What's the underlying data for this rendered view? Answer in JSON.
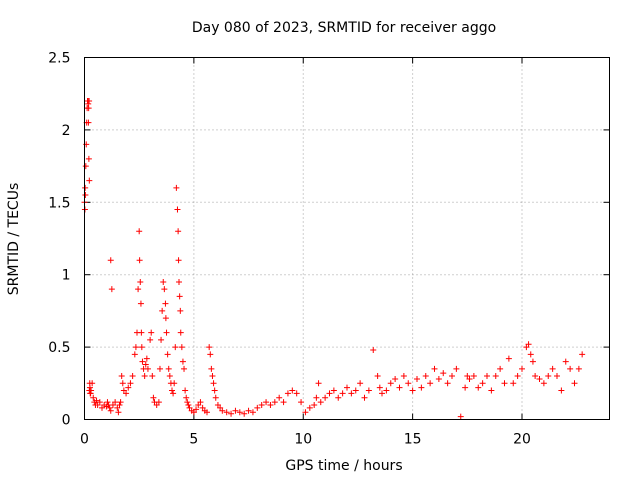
{
  "chart_data": {
    "type": "scatter",
    "title": "Day 080 of 2023, SRMTID for receiver aggo",
    "xlabel": "GPS time / hours",
    "ylabel": "SRMTID / TECUs",
    "xlim": [
      0,
      24
    ],
    "ylim": [
      0,
      2.5
    ],
    "xticks": [
      0,
      5,
      10,
      15,
      20
    ],
    "xtick_labels": [
      "0",
      "5",
      "10",
      "15",
      "20"
    ],
    "yticks": [
      0,
      0.5,
      1,
      1.5,
      2,
      2.5
    ],
    "ytick_labels": [
      "0",
      "0.5",
      "1",
      "1.5",
      "2",
      "2.5"
    ],
    "grid": true,
    "marker": "plus",
    "color": "#ff0000",
    "series": [
      {
        "name": "SRMTID",
        "x": [
          0.0,
          0.03,
          0.06,
          0.08,
          0.1,
          0.12,
          0.14,
          0.16,
          0.18,
          0.2,
          0.22,
          0.25,
          0.28,
          0.3,
          0.35,
          0.4,
          0.45,
          0.5,
          0.55,
          0.6,
          0.7,
          0.8,
          0.9,
          1.0,
          1.05,
          1.1,
          1.15,
          1.2,
          1.3,
          1.4,
          1.5,
          1.55,
          1.6,
          1.65,
          1.7,
          1.75,
          1.8,
          1.9,
          2.0,
          2.1,
          2.2,
          2.3,
          2.35,
          2.4,
          2.45,
          2.5,
          2.52,
          2.55,
          2.58,
          2.6,
          2.62,
          2.65,
          2.7,
          2.75,
          2.8,
          2.85,
          2.9,
          3.0,
          3.05,
          3.1,
          3.15,
          3.2,
          3.3,
          3.4,
          3.45,
          3.5,
          3.55,
          3.6,
          3.65,
          3.7,
          3.72,
          3.75,
          3.8,
          3.85,
          3.9,
          3.95,
          4.0,
          4.05,
          4.1,
          4.15,
          4.2,
          4.25,
          4.28,
          4.3,
          4.32,
          4.35,
          4.38,
          4.4,
          4.45,
          4.5,
          4.55,
          4.6,
          4.65,
          4.7,
          4.75,
          4.8,
          4.9,
          5.0,
          5.1,
          5.2,
          5.3,
          5.4,
          5.5,
          5.6,
          5.7,
          5.75,
          5.8,
          5.85,
          5.9,
          5.95,
          6.0,
          6.1,
          6.2,
          6.3,
          6.5,
          6.7,
          6.9,
          7.1,
          7.3,
          7.5,
          7.7,
          7.9,
          8.1,
          8.3,
          8.5,
          8.7,
          8.9,
          9.1,
          9.3,
          9.5,
          9.7,
          9.9,
          10.1,
          10.3,
          10.5,
          10.6,
          10.7,
          10.8,
          11.0,
          11.2,
          11.4,
          11.6,
          11.8,
          12.0,
          12.2,
          12.4,
          12.6,
          12.8,
          13.0,
          13.2,
          13.4,
          13.5,
          13.6,
          13.8,
          14.0,
          14.2,
          14.4,
          14.6,
          14.8,
          15.0,
          15.2,
          15.4,
          15.6,
          15.8,
          16.0,
          16.2,
          16.4,
          16.6,
          16.8,
          17.0,
          17.2,
          17.4,
          17.5,
          17.6,
          17.8,
          18.0,
          18.2,
          18.4,
          18.6,
          18.8,
          19.0,
          19.2,
          19.4,
          19.6,
          19.8,
          20.0,
          20.2,
          20.3,
          20.4,
          20.5,
          20.6,
          20.8,
          21.0,
          21.2,
          21.4,
          21.6,
          21.8,
          22.0,
          22.2,
          22.4,
          22.6,
          22.75,
          1.2,
          1.25,
          0.02,
          0.04,
          0.22,
          0.24,
          0.26,
          0.15,
          0.17,
          0.19,
          0.21
        ],
        "y": [
          1.5,
          1.6,
          1.75,
          1.9,
          2.05,
          2.15,
          2.2,
          2.2,
          2.05,
          1.8,
          1.65,
          0.22,
          0.18,
          0.2,
          0.25,
          0.15,
          0.12,
          0.1,
          0.13,
          0.1,
          0.12,
          0.08,
          0.1,
          0.09,
          0.12,
          0.1,
          0.08,
          0.06,
          0.1,
          0.12,
          0.08,
          0.05,
          0.1,
          0.12,
          0.3,
          0.25,
          0.2,
          0.18,
          0.22,
          0.25,
          0.3,
          0.45,
          0.5,
          0.6,
          0.9,
          1.3,
          1.1,
          0.95,
          0.8,
          0.6,
          0.5,
          0.4,
          0.35,
          0.3,
          0.38,
          0.42,
          0.35,
          0.55,
          0.6,
          0.3,
          0.15,
          0.12,
          0.1,
          0.12,
          0.35,
          0.55,
          0.75,
          0.95,
          0.9,
          0.8,
          0.7,
          0.6,
          0.45,
          0.35,
          0.3,
          0.25,
          0.2,
          0.18,
          0.25,
          0.5,
          1.6,
          1.45,
          1.3,
          1.1,
          0.95,
          0.85,
          0.75,
          0.6,
          0.5,
          0.4,
          0.35,
          0.2,
          0.15,
          0.12,
          0.1,
          0.08,
          0.06,
          0.05,
          0.07,
          0.1,
          0.12,
          0.08,
          0.06,
          0.05,
          0.5,
          0.45,
          0.35,
          0.3,
          0.25,
          0.2,
          0.15,
          0.1,
          0.08,
          0.06,
          0.05,
          0.04,
          0.06,
          0.05,
          0.04,
          0.06,
          0.05,
          0.08,
          0.1,
          0.12,
          0.1,
          0.12,
          0.15,
          0.12,
          0.18,
          0.2,
          0.18,
          0.12,
          0.05,
          0.08,
          0.1,
          0.15,
          0.25,
          0.12,
          0.15,
          0.18,
          0.2,
          0.15,
          0.18,
          0.22,
          0.18,
          0.2,
          0.25,
          0.15,
          0.2,
          0.48,
          0.3,
          0.22,
          0.18,
          0.2,
          0.25,
          0.28,
          0.22,
          0.3,
          0.25,
          0.2,
          0.28,
          0.22,
          0.3,
          0.25,
          0.35,
          0.28,
          0.32,
          0.25,
          0.3,
          0.35,
          0.02,
          0.22,
          0.3,
          0.28,
          0.3,
          0.22,
          0.25,
          0.3,
          0.2,
          0.3,
          0.35,
          0.25,
          0.42,
          0.25,
          0.3,
          0.35,
          0.5,
          0.52,
          0.45,
          0.4,
          0.3,
          0.28,
          0.25,
          0.3,
          0.35,
          0.3,
          0.2,
          0.4,
          0.35,
          0.25,
          0.35,
          0.45,
          1.1,
          0.9,
          1.45,
          1.55,
          0.2,
          0.25,
          0.18,
          2.2,
          2.18,
          2.15,
          2.2
        ]
      }
    ]
  }
}
